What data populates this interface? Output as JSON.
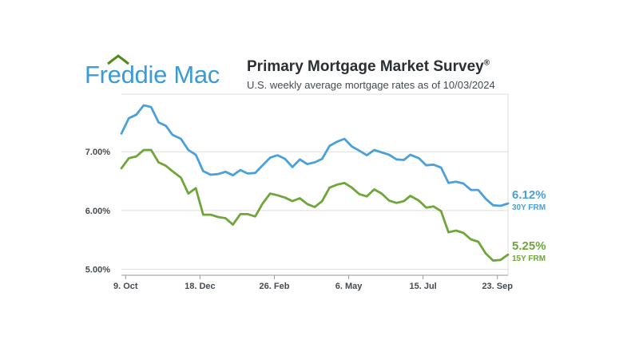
{
  "header": {
    "logo_text": "Freddie Mac",
    "title": "Primary Mortgage Market Survey",
    "title_mark": "®",
    "subtitle": "U.S. weekly average mortgage rates as of 10/03/2024"
  },
  "colors": {
    "brand_blue": "#3a9bd5",
    "brand_green": "#4f8a1f",
    "series_30y": "#4aa0d8",
    "series_15y": "#6ea63a",
    "grid": "#dddddd"
  },
  "chart_data": {
    "type": "line",
    "title": "Primary Mortgage Market Survey",
    "subtitle": "U.S. weekly average mortgage rates as of 10/03/2024",
    "x": [
      "2023-10-05",
      "2023-10-12",
      "2023-10-19",
      "2023-10-26",
      "2023-11-02",
      "2023-11-09",
      "2023-11-16",
      "2023-11-22",
      "2023-11-30",
      "2023-12-07",
      "2023-12-14",
      "2023-12-21",
      "2023-12-28",
      "2024-01-04",
      "2024-01-11",
      "2024-01-18",
      "2024-01-25",
      "2024-02-01",
      "2024-02-08",
      "2024-02-15",
      "2024-02-22",
      "2024-02-29",
      "2024-03-07",
      "2024-03-14",
      "2024-03-21",
      "2024-03-28",
      "2024-04-04",
      "2024-04-11",
      "2024-04-18",
      "2024-04-25",
      "2024-05-02",
      "2024-05-09",
      "2024-05-16",
      "2024-05-23",
      "2024-05-30",
      "2024-06-06",
      "2024-06-13",
      "2024-06-20",
      "2024-06-27",
      "2024-07-03",
      "2024-07-11",
      "2024-07-18",
      "2024-07-25",
      "2024-08-01",
      "2024-08-08",
      "2024-08-15",
      "2024-08-22",
      "2024-08-29",
      "2024-09-05",
      "2024-09-12",
      "2024-09-19",
      "2024-09-26",
      "2024-10-03"
    ],
    "xticks": [
      {
        "label": "9. Oct",
        "date": "2023-10-09"
      },
      {
        "label": "18. Dec",
        "date": "2023-12-18"
      },
      {
        "label": "26. Feb",
        "date": "2024-02-26"
      },
      {
        "label": "6. May",
        "date": "2024-05-06"
      },
      {
        "label": "15. Jul",
        "date": "2024-07-15"
      },
      {
        "label": "23. Sep",
        "date": "2024-09-23"
      }
    ],
    "ylim": [
      4.9,
      7.98
    ],
    "yticks": [
      {
        "label": "5.00%",
        "value": 5.0
      },
      {
        "label": "6.00%",
        "value": 6.0
      },
      {
        "label": "7.00%",
        "value": 7.0
      }
    ],
    "grid": true,
    "series": [
      {
        "name": "30Y FRM",
        "end_value_label": "6.12%",
        "end_name_label": "30Y FRM",
        "color": "#4aa0d8",
        "values": [
          7.31,
          7.57,
          7.63,
          7.79,
          7.76,
          7.5,
          7.44,
          7.29,
          7.22,
          7.03,
          6.95,
          6.67,
          6.61,
          6.62,
          6.66,
          6.6,
          6.69,
          6.63,
          6.64,
          6.77,
          6.9,
          6.94,
          6.88,
          6.74,
          6.87,
          6.79,
          6.82,
          6.88,
          7.1,
          7.17,
          7.22,
          7.09,
          7.02,
          6.94,
          7.03,
          6.99,
          6.95,
          6.87,
          6.86,
          6.95,
          6.89,
          6.77,
          6.78,
          6.73,
          6.47,
          6.49,
          6.46,
          6.35,
          6.35,
          6.2,
          6.09,
          6.08,
          6.12
        ]
      },
      {
        "name": "15Y FRM",
        "end_value_label": "5.25%",
        "end_name_label": "15Y FRM",
        "color": "#6ea63a",
        "values": [
          6.72,
          6.89,
          6.92,
          7.03,
          7.03,
          6.82,
          6.76,
          6.67,
          6.56,
          6.29,
          6.38,
          5.93,
          5.93,
          5.89,
          5.87,
          5.76,
          5.94,
          5.94,
          5.9,
          6.12,
          6.29,
          6.26,
          6.22,
          6.16,
          6.21,
          6.11,
          6.06,
          6.16,
          6.39,
          6.44,
          6.47,
          6.39,
          6.28,
          6.24,
          6.36,
          6.29,
          6.17,
          6.13,
          6.16,
          6.25,
          6.17,
          6.05,
          6.07,
          5.99,
          5.63,
          5.66,
          5.62,
          5.51,
          5.47,
          5.27,
          5.15,
          5.16,
          5.25
        ]
      }
    ]
  }
}
